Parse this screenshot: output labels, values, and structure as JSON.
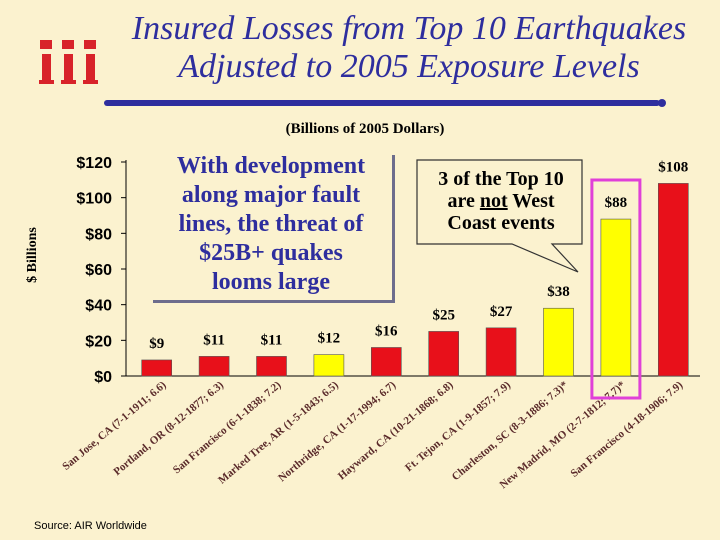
{
  "title": {
    "line1": "Insured Losses from Top 10 Earthquakes",
    "line2": "Adjusted to 2005 Exposure Levels"
  },
  "subtitle": "(Billions of 2005 Dollars)",
  "source": "Source: AIR Worldwide",
  "logo": {
    "icon": "iii-logo-icon",
    "color": "#D8232A"
  },
  "callouts": {
    "development": {
      "line1": "With development",
      "line2": "along major fault",
      "line3": "lines, the threat of",
      "line4": "$25B+ quakes",
      "line5": "looms large"
    },
    "west_coast": {
      "line1": "3 of the Top 10",
      "line2_pre": "are ",
      "line2_not": "not",
      "line2_post": " West",
      "line3": "Coast events"
    }
  },
  "colors": {
    "west_coast_bar": "#E8101A",
    "non_west_coast_bar": "#FFFF00",
    "highlight_box": "#E040D8",
    "title_text": "#2E2E9E"
  },
  "chart_data": {
    "type": "bar",
    "ylabel": "$ Billions",
    "ylim": [
      0,
      120
    ],
    "yticks": [
      "$0",
      "$20",
      "$40",
      "$60",
      "$80",
      "$100",
      "$120"
    ],
    "grid": false,
    "categories": [
      "San Jose, CA (7-1-1911; 6.6)",
      "Portland, OR (8-12-1877; 6.3)",
      "San Francisco (6-1-1838; 7.2)",
      "Marked Tree, AR (1-5-1843; 6.5)",
      "Northridge, CA (1-17-1994; 6.7)",
      "Hayward, CA (10-21-1868; 6.8)",
      "Ft. Tejon, CA (1-9-1857; 7.9)",
      "Charleston, SC (8-3-1886; 7.3)*",
      "New Madrid, MO (2-7-1812; 7.7)*",
      "San Francisco (4-18-1906; 7.9)"
    ],
    "values": [
      9,
      11,
      11,
      12,
      16,
      25,
      27,
      38,
      88,
      108
    ],
    "value_labels": [
      "$9",
      "$11",
      "$11",
      "$12",
      "$16",
      "$25",
      "$27",
      "$38",
      "$88",
      "$108"
    ],
    "bar_colors": [
      "red",
      "red",
      "red",
      "yellow",
      "red",
      "red",
      "red",
      "yellow",
      "yellow",
      "red"
    ],
    "highlighted_category_index": 8
  }
}
